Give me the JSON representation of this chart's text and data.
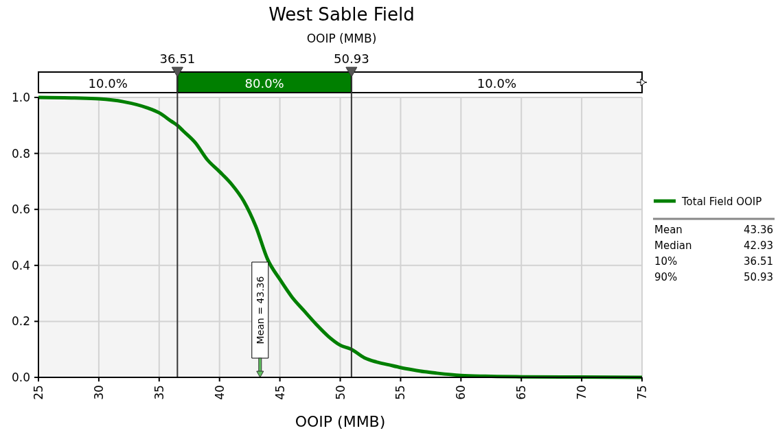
{
  "chart_data": {
    "type": "line",
    "title": "West Sable Field",
    "subtitle": "OOIP (MMB)",
    "xlabel": "OOIP (MMB)",
    "series": [
      {
        "name": "Total Field OOIP",
        "color": "#007f00",
        "x": [
          25,
          28,
          30,
          32,
          34,
          35,
          36,
          36.51,
          37,
          38,
          39,
          40,
          41,
          42,
          43,
          44,
          45,
          46,
          47,
          48,
          49,
          50,
          50.93,
          52,
          53,
          54,
          55,
          56,
          57,
          58,
          60,
          62,
          63,
          65,
          70,
          75
        ],
        "values": [
          1,
          0.998,
          0.995,
          0.985,
          0.963,
          0.945,
          0.915,
          0.9,
          0.88,
          0.838,
          0.777,
          0.735,
          0.69,
          0.63,
          0.54,
          0.42,
          0.35,
          0.287,
          0.238,
          0.19,
          0.147,
          0.115,
          0.1,
          0.07,
          0.055,
          0.045,
          0.035,
          0.027,
          0.02,
          0.015,
          0.007,
          0.004,
          0.003,
          0.002,
          0.001,
          0
        ]
      }
    ],
    "xlim": [
      25,
      75
    ],
    "xticks": [
      25,
      30,
      35,
      40,
      45,
      50,
      55,
      60,
      65,
      70,
      75
    ],
    "ylim": [
      0,
      1
    ],
    "yticks": [
      {
        "value": 0,
        "label": "0.0"
      },
      0.2,
      0.4,
      0.6,
      0.8,
      {
        "value": 1,
        "label": "1.0"
      }
    ],
    "grid": true,
    "legend": "right",
    "line_style": "solid",
    "marker": "none",
    "ref_lines": [
      {
        "axis": "x",
        "value": 36.51,
        "label": "36.51",
        "color": "#333333"
      },
      {
        "axis": "x",
        "value": 50.93,
        "label": "50.93",
        "color": "#333333"
      }
    ],
    "annotations": [
      "10.0%",
      "80.0%",
      "10.0%",
      "Mean = 43.36",
      "Mean 43.36",
      "Median 42.93",
      "10% 36.51",
      "90% 50.93"
    ]
  }
}
